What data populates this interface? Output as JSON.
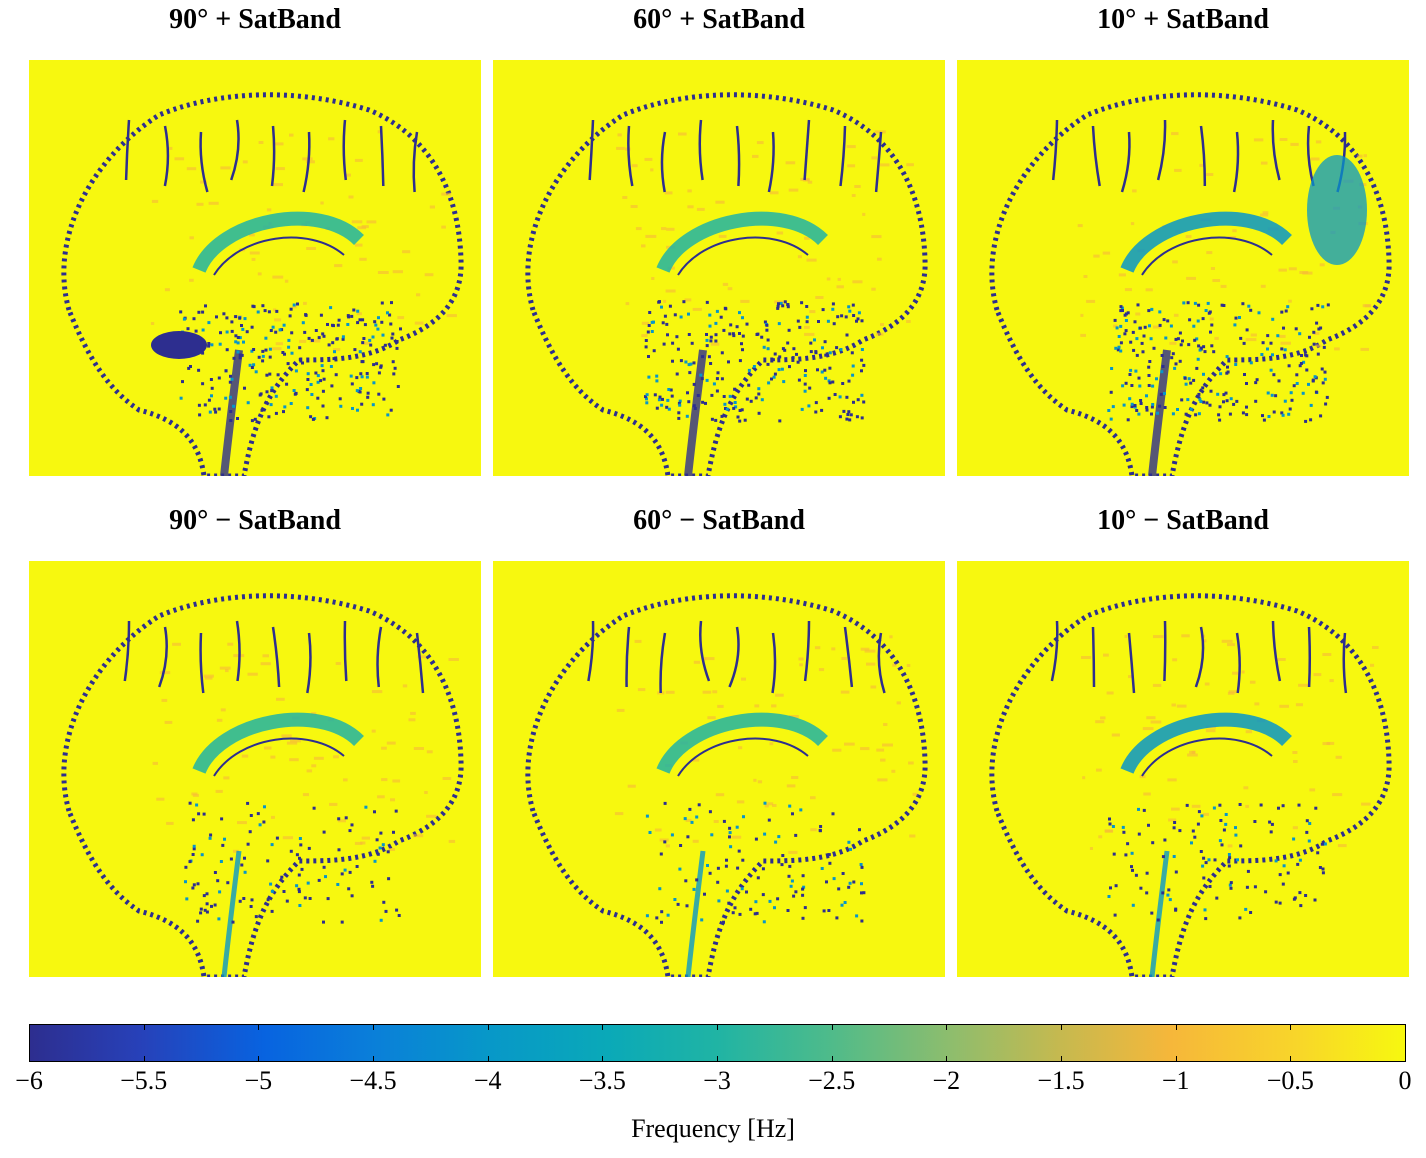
{
  "panels": [
    {
      "title": "90°  + SatBand"
    },
    {
      "title": "60°  + SatBand"
    },
    {
      "title": "10°  + SatBand"
    },
    {
      "title": "90°  − SatBand"
    },
    {
      "title": "60°  − SatBand"
    },
    {
      "title": "10°  − SatBand"
    }
  ],
  "colorbar": {
    "label": "Frequency [Hz]",
    "min": -6,
    "max": 0,
    "ticks": [
      "−6",
      "−5.5",
      "−5",
      "−4.5",
      "−4",
      "−3.5",
      "−3",
      "−2.5",
      "−2",
      "−1.5",
      "−1",
      "−0.5",
      "0"
    ],
    "tick_values": [
      -6,
      -5.5,
      -5,
      -4.5,
      -4,
      -3.5,
      -3,
      -2.5,
      -2,
      -1.5,
      -1,
      -0.5,
      0
    ]
  },
  "colors": {
    "background": "#f7f80f",
    "low": "#2d2e8f",
    "mid_blue": "#0797c9",
    "cyan": "#20b4a4",
    "orange": "#f6b73a"
  }
}
